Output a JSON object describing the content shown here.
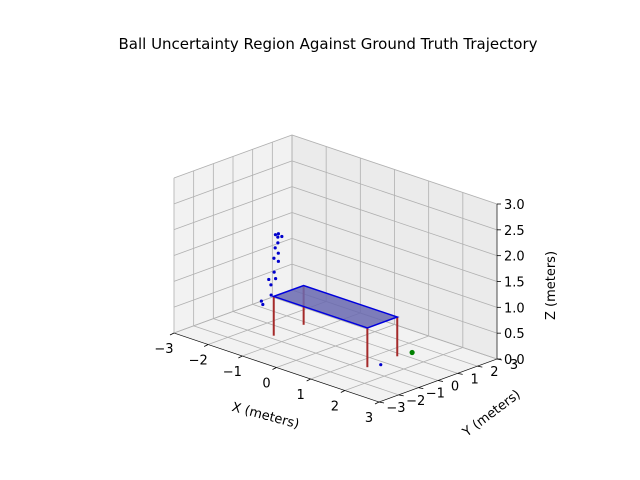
{
  "chart_data": {
    "type": "scatter",
    "projection": "3d",
    "title": "Ball Uncertainty Region Against Ground Truth Trajectory",
    "xlabel": "X (meters)",
    "ylabel": "Y (meters)",
    "zlabel": "Z (meters)",
    "xlim": [
      -3,
      3
    ],
    "ylim": [
      -3,
      3
    ],
    "zlim": [
      0,
      3
    ],
    "xticks": [
      "−3",
      "−2",
      "−1",
      "0",
      "1",
      "2",
      "3"
    ],
    "yticks": [
      "−3",
      "−2",
      "−1",
      "0",
      "1",
      "2",
      "3"
    ],
    "zticks": [
      "0.0",
      "0.5",
      "1.0",
      "1.5",
      "2.0",
      "2.5",
      "3.0"
    ],
    "grid": true,
    "colors": {
      "table_face": "#6a6ab0",
      "table_edge": "#0000dd",
      "legs": "#a52a2a",
      "points": "#0000cc",
      "ground_truth": "#008000"
    },
    "table": {
      "x": [
        -1.37,
        1.37
      ],
      "y": [
        -0.76,
        0.76
      ],
      "z": 0.76,
      "leg_positions": [
        [
          -1.37,
          -0.76
        ],
        [
          1.37,
          -0.76
        ],
        [
          -1.37,
          0.76
        ],
        [
          1.37,
          0.76
        ]
      ]
    },
    "uncertainty_points": [
      {
        "x": -2.65,
        "y": 1.55,
        "z": 1.35
      },
      {
        "x": -2.62,
        "y": 1.62,
        "z": 1.3
      },
      {
        "x": -2.58,
        "y": 1.58,
        "z": 1.38
      },
      {
        "x": -2.52,
        "y": 1.65,
        "z": 1.33
      },
      {
        "x": -2.55,
        "y": 1.5,
        "z": 1.22
      },
      {
        "x": -2.6,
        "y": 1.45,
        "z": 1.12
      },
      {
        "x": -2.48,
        "y": 1.4,
        "z": 1.05
      },
      {
        "x": -2.55,
        "y": 1.3,
        "z": 0.95
      },
      {
        "x": -2.42,
        "y": 1.3,
        "z": 0.92
      },
      {
        "x": -2.4,
        "y": 1.05,
        "z": 0.75
      },
      {
        "x": -2.5,
        "y": 0.95,
        "z": 0.6
      },
      {
        "x": -2.3,
        "y": 0.95,
        "z": 0.66
      },
      {
        "x": -2.35,
        "y": 0.8,
        "z": 0.55
      },
      {
        "x": -2.2,
        "y": 0.55,
        "z": 0.42
      },
      {
        "x": -2.4,
        "y": 0.4,
        "z": 0.28
      },
      {
        "x": -2.3,
        "y": 0.3,
        "z": 0.25
      },
      {
        "x": 1.9,
        "y": -1.0,
        "z": 0.2
      }
    ],
    "ground_truth_points": [
      {
        "x": 2.3,
        "y": -0.1,
        "z": 0.4
      }
    ]
  }
}
